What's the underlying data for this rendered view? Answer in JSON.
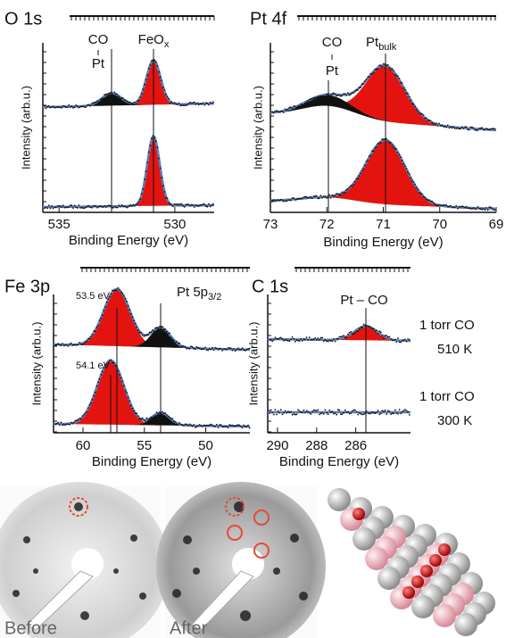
{
  "panels": [
    {
      "title": "O 1s",
      "y_label": "Intensity (arb.u.)",
      "x_label": "Binding Energy (eV)",
      "xlim": [
        535.7,
        528.3
      ],
      "xticks": [
        535,
        530
      ],
      "annotations": [
        {
          "text": "CO"
        },
        {
          "text": "Pt"
        },
        {
          "text": "FeO",
          "sub": "x"
        }
      ]
    },
    {
      "title": "Pt 4f",
      "y_label": "Intensity (arb.u.)",
      "x_label": "Binding Energy (eV)",
      "xlim": [
        73,
        69
      ],
      "xticks": [
        73,
        72,
        71,
        70,
        69
      ],
      "annotations": [
        {
          "text": "CO"
        },
        {
          "text": "Pt"
        },
        {
          "text": "Pt",
          "sub": "bulk"
        }
      ]
    },
    {
      "title": "Fe 3p",
      "y_label": "Intensity (arb.u.)",
      "x_label": "Binding Energy (eV)",
      "xlim": [
        62.4,
        46.4
      ],
      "xticks": [
        60,
        55,
        50
      ],
      "annotations": [
        {
          "text": "53.5 eV"
        },
        {
          "text": "Pt 5p",
          "sub": "3/2"
        },
        {
          "text": "54.1 eV"
        }
      ]
    },
    {
      "title": "C 1s",
      "y_label": "Intensity (arb.u.)",
      "x_label": "Binding Energy (eV)",
      "xlim": [
        290.5,
        283.2
      ],
      "xticks": [
        290,
        288,
        286
      ],
      "annotations": [
        {
          "text": "Pt – CO"
        },
        {
          "text": "1 torr CO"
        },
        {
          "text": "510 K"
        },
        {
          "text": "1 torr CO"
        },
        {
          "text": "300 K"
        }
      ]
    }
  ],
  "images": [
    {
      "label": "Before"
    },
    {
      "label": "After"
    }
  ]
}
